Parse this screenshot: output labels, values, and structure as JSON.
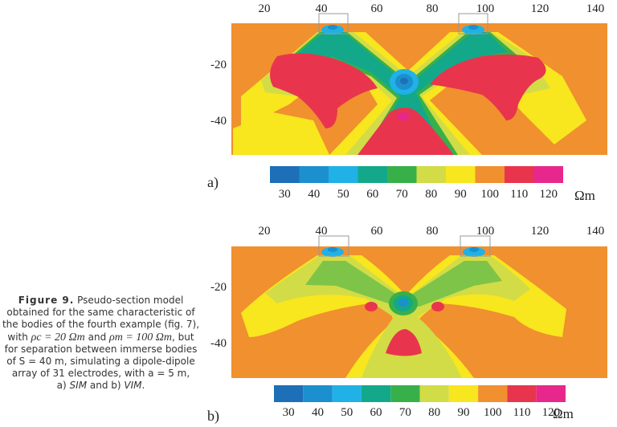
{
  "x_ticks": [
    "20",
    "40",
    "60",
    "80",
    "100",
    "120",
    "140"
  ],
  "y_ticks": [
    "-20",
    "-40"
  ],
  "panels": [
    {
      "label": "a)"
    },
    {
      "label": "b)"
    }
  ],
  "colorbar": {
    "labels": [
      "30",
      "40",
      "50",
      "60",
      "70",
      "80",
      "90",
      "100",
      "110",
      "120"
    ],
    "unit": "Ωm",
    "colors": [
      "#1d6fb8",
      "#1c8fcf",
      "#20b1e6",
      "#14a88a",
      "#38b04a",
      "#d2dc46",
      "#f8e61e",
      "#f0902f",
      "#e8354d",
      "#e8278c"
    ]
  },
  "caption": {
    "lead": "Figure 9.",
    "text1": " Pseudo-section model obtained for the same characteristic of the bodies of the fourth example (fig. 7), with ",
    "rho_c": "ρc = 20 Ωm",
    "and": " and ",
    "rho_m": "ρm = 100 Ωm",
    "text2": ", but for separation between immerse bodies of S = 40 m, simulating a dipole-dipole array of 31 electrodes, with a = 5 m,",
    "sim": "SIM",
    "vim": "VIM",
    "part_a": "a) ",
    "part_mid": " and b) ",
    "end": "."
  }
}
